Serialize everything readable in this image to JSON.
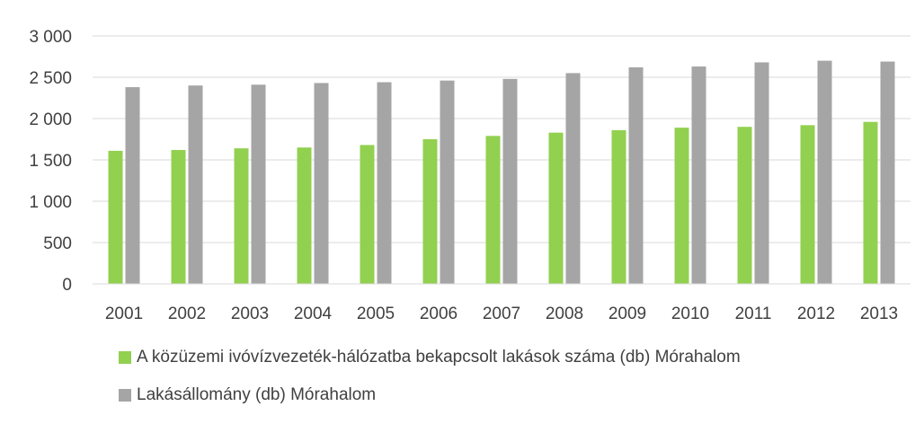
{
  "chart_data": {
    "type": "bar",
    "categories": [
      "2001",
      "2002",
      "2003",
      "2004",
      "2005",
      "2006",
      "2007",
      "2008",
      "2009",
      "2010",
      "2011",
      "2012",
      "2013"
    ],
    "series": [
      {
        "name": "A közüzemi ivóvízvezeték-hálózatba bekapcsolt lakások száma (db) Mórahalom",
        "color": "#92d050",
        "values": [
          1610,
          1620,
          1640,
          1650,
          1680,
          1750,
          1790,
          1830,
          1860,
          1890,
          1900,
          1920,
          1960
        ]
      },
      {
        "name": "Lakásállomány (db) Mórahalom",
        "color": "#a5a5a5",
        "values": [
          2380,
          2400,
          2410,
          2430,
          2440,
          2460,
          2480,
          2550,
          2620,
          2630,
          2680,
          2700,
          2690
        ]
      }
    ],
    "ylim": [
      0,
      3000
    ],
    "yticks": [
      0,
      500,
      1000,
      1500,
      2000,
      2500,
      3000
    ],
    "ytick_labels": [
      "0",
      "500",
      "1 000",
      "1 500",
      "2 000",
      "2 500",
      "3 000"
    ],
    "grid": true,
    "legend_position": "bottom-left"
  }
}
